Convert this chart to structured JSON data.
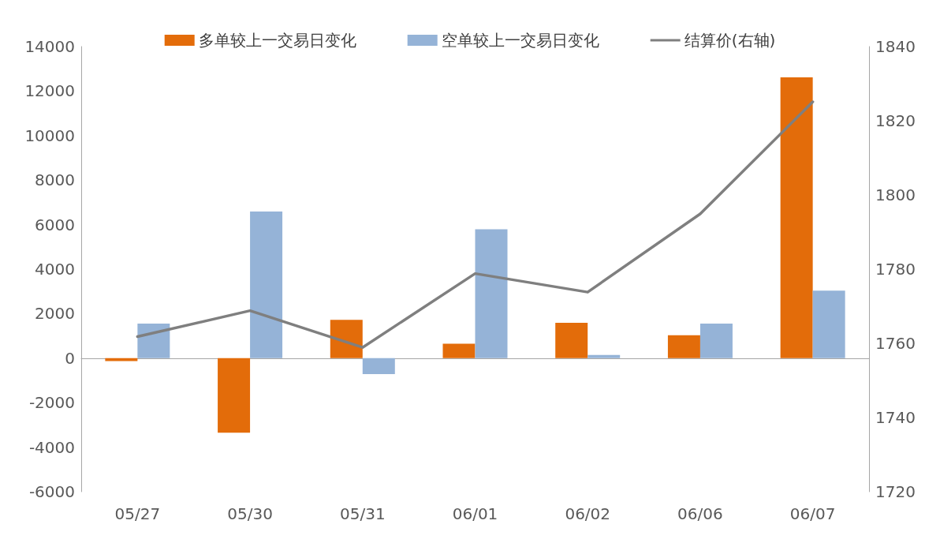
{
  "chart_data": {
    "type": "bar",
    "categories": [
      "05/27",
      "05/30",
      "05/31",
      "06/01",
      "06/02",
      "06/06",
      "06/07"
    ],
    "series": [
      {
        "name": "多单较上一交易日变化",
        "color": "#e36c0a",
        "values": [
          -130,
          -3350,
          1720,
          650,
          1590,
          1030,
          12620
        ]
      },
      {
        "name": "空单较上一交易日变化",
        "color": "#95b3d7",
        "values": [
          1550,
          6590,
          -720,
          5790,
          140,
          1550,
          3030
        ]
      },
      {
        "name": "结算价(右轴)",
        "type": "line",
        "axis": "y2",
        "color": "#7f7f7f",
        "values": [
          1761.8,
          1768.8,
          1758.9,
          1778.8,
          1773.8,
          1794.9,
          1825.1
        ]
      }
    ],
    "ylim": [
      -6000,
      14000
    ],
    "yticks": [
      -6000,
      -4000,
      -2000,
      0,
      2000,
      4000,
      6000,
      8000,
      10000,
      12000,
      14000
    ],
    "y2lim": [
      1720,
      1840
    ],
    "y2ticks": [
      1720,
      1740,
      1760,
      1780,
      1800,
      1820,
      1840
    ],
    "legend": "top",
    "marker": "none",
    "line_style": "solid"
  }
}
